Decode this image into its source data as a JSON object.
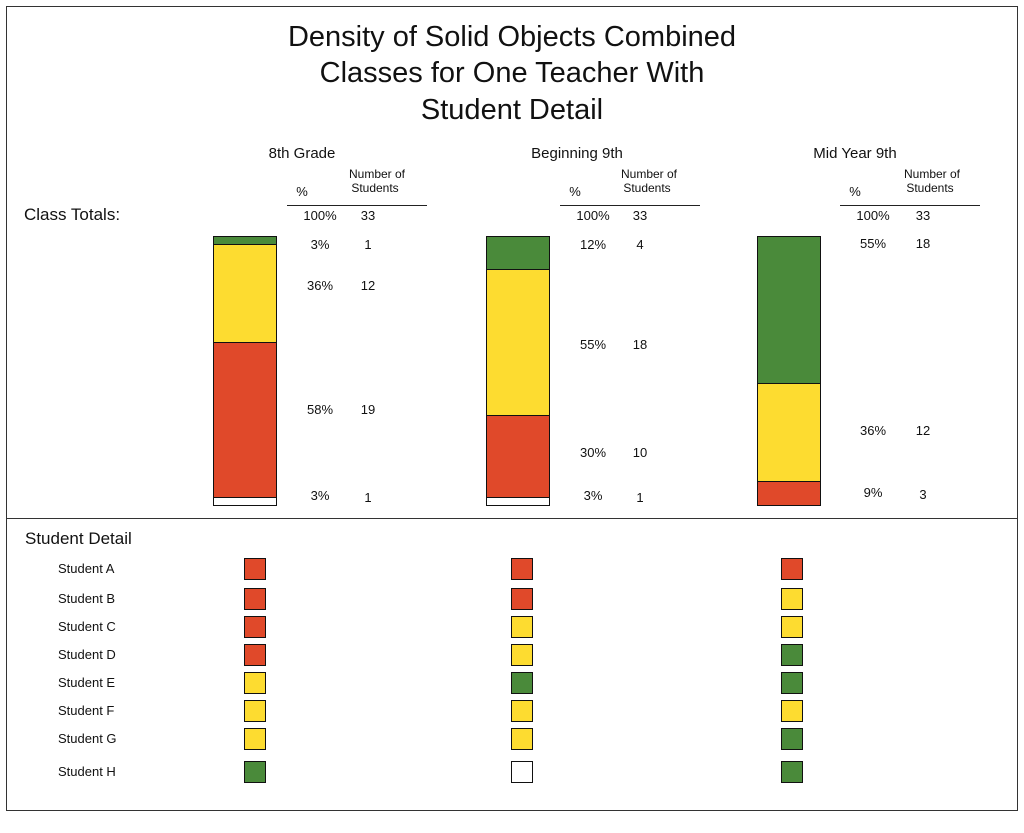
{
  "title_lines": [
    "Density of Solid Objects Combined",
    "Classes for One Teacher With",
    "Student Detail"
  ],
  "class_totals_label": "Class Totals:",
  "student_detail_label": "Student Detail",
  "header_pct": "%",
  "header_num": [
    "Number of",
    "Students"
  ],
  "colors": {
    "green": "#4a8a3a",
    "yellow": "#fddc30",
    "red": "#e0492a",
    "white": "#ffffff"
  },
  "chart_data": {
    "type": "bar",
    "stacked": true,
    "categories": [
      "8th Grade",
      "Beginning 9th",
      "Mid Year 9th"
    ],
    "total": {
      "pct": "100%",
      "num": "33"
    },
    "series_order_top_to_bottom": [
      "green",
      "yellow",
      "red",
      "white"
    ],
    "groups": [
      {
        "name": "8th Grade",
        "segments": [
          {
            "color": "green",
            "pct": "3%",
            "num": "1",
            "value": 1
          },
          {
            "color": "yellow",
            "pct": "36%",
            "num": "12",
            "value": 12
          },
          {
            "color": "red",
            "pct": "58%",
            "num": "19",
            "value": 19
          },
          {
            "color": "white",
            "pct": "3%",
            "num": "1",
            "value": 1
          }
        ],
        "students": [
          "red",
          "red",
          "red",
          "red",
          "yellow",
          "yellow",
          "yellow",
          "green"
        ]
      },
      {
        "name": "Beginning 9th",
        "segments": [
          {
            "color": "green",
            "pct": "12%",
            "num": "4",
            "value": 4
          },
          {
            "color": "yellow",
            "pct": "55%",
            "num": "18",
            "value": 18
          },
          {
            "color": "red",
            "pct": "30%",
            "num": "10",
            "value": 10
          },
          {
            "color": "white",
            "pct": "3%",
            "num": "1",
            "value": 1
          }
        ],
        "students": [
          "red",
          "red",
          "yellow",
          "yellow",
          "green",
          "yellow",
          "yellow",
          "white"
        ]
      },
      {
        "name": "Mid Year 9th",
        "segments": [
          {
            "color": "green",
            "pct": "55%",
            "num": "18",
            "value": 18
          },
          {
            "color": "yellow",
            "pct": "36%",
            "num": "12",
            "value": 12
          },
          {
            "color": "red",
            "pct": "9%",
            "num": "3",
            "value": 3
          }
        ],
        "students": [
          "red",
          "yellow",
          "yellow",
          "green",
          "green",
          "yellow",
          "green",
          "green"
        ]
      }
    ],
    "student_names": [
      "Student  A",
      "Student  B",
      "Student  C",
      "Student  D",
      "Student  E",
      "Student  F",
      "Student G",
      "Student H"
    ]
  }
}
